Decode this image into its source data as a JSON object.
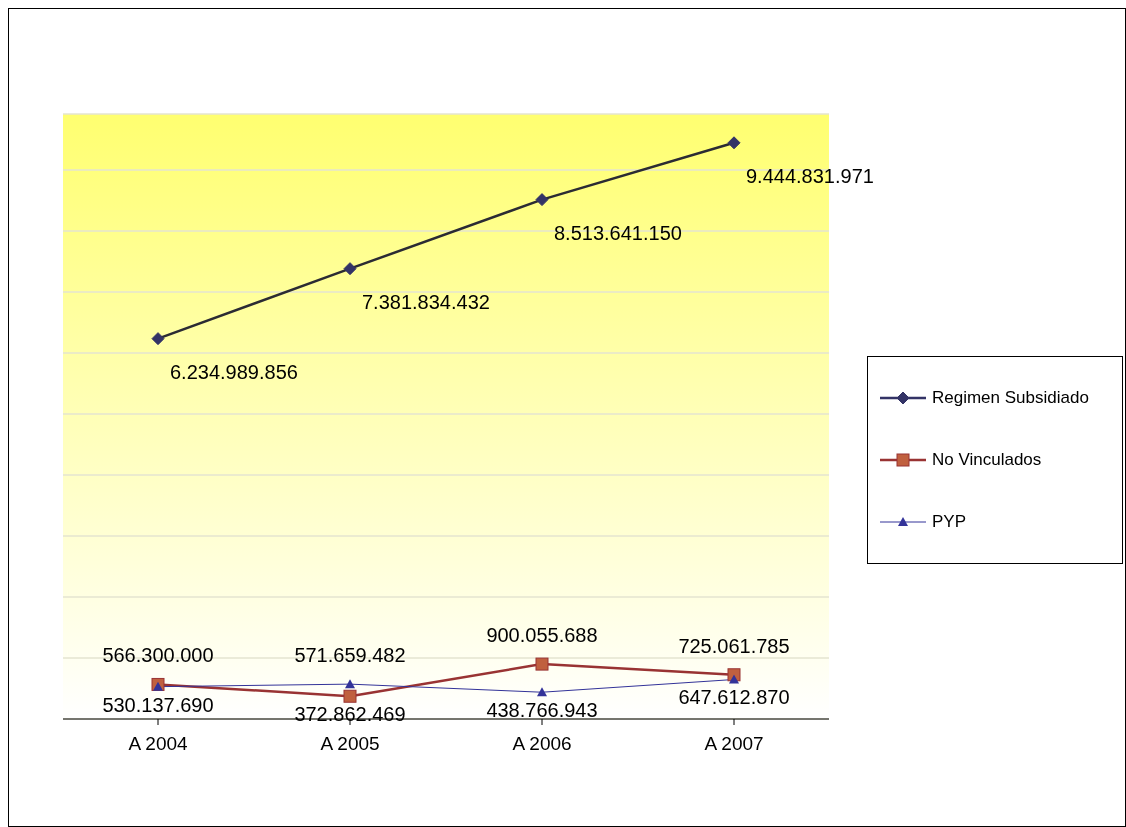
{
  "chart_data": {
    "type": "line",
    "categories": [
      "A 2004",
      "A 2005",
      "A 2006",
      "A 2007"
    ],
    "series": [
      {
        "name": "Regimen Subsidiado",
        "color": "#333366",
        "marker": "diamond",
        "values": [
          6234989856,
          7381834432,
          8513641150,
          9444831971
        ],
        "value_labels": [
          "6.234.989.856",
          "7.381.834.432",
          "8.513.641.150",
          "9.444.831.971"
        ]
      },
      {
        "name": "No Vinculados",
        "color": "#993333",
        "marker": "square",
        "values": [
          566300000,
          372862469,
          900055688,
          725061785
        ],
        "value_labels": [
          "566.300.000",
          "372.862.469",
          "900.055.688",
          "725.061.785"
        ]
      },
      {
        "name": "PYP",
        "color": "#333399",
        "marker": "triangle",
        "values": [
          530137690,
          571659482,
          438766943,
          647612870
        ],
        "value_labels": [
          "530.137.690",
          "571.659.482",
          "438.766.943",
          "647.612.870"
        ]
      }
    ],
    "tick_labels": "x",
    "grid": "y",
    "legend": "right"
  }
}
